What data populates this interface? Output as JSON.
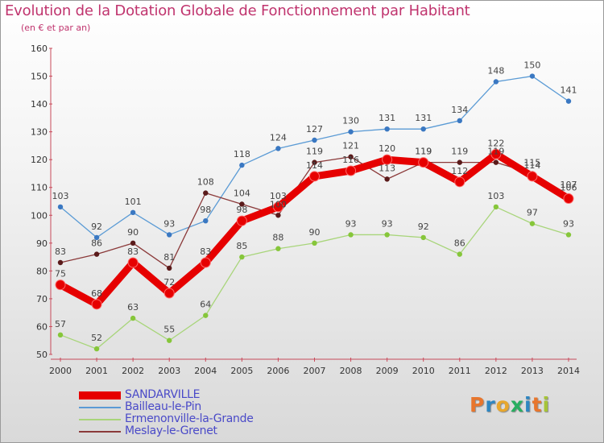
{
  "header": {
    "title": "Evolution de la Dotation Globale de Fonctionnement par Habitant",
    "subtitle": "(en € et par an)"
  },
  "brand": {
    "letters": [
      "P",
      "r",
      "o",
      "x",
      "i",
      "t",
      "i"
    ],
    "colors": [
      "#e8762d",
      "#2e86c1",
      "#e8a72d",
      "#27ae60",
      "#2e86c1",
      "#e8762d",
      "#a6c437"
    ]
  },
  "chart_data": {
    "type": "line",
    "title": "Evolution de la Dotation Globale de Fonctionnement par Habitant",
    "subtitle": "(en € et par an)",
    "xlabel": "",
    "ylabel": "",
    "ylim": [
      50,
      160
    ],
    "yticks": [
      50,
      60,
      70,
      80,
      90,
      100,
      110,
      120,
      130,
      140,
      150,
      160
    ],
    "grid": false,
    "legend_position": "bottom-left",
    "categories": [
      "2000",
      "2001",
      "2002",
      "2003",
      "2004",
      "2005",
      "2006",
      "2007",
      "2008",
      "2009",
      "2010",
      "2011",
      "2012",
      "2013",
      "2014"
    ],
    "series": [
      {
        "name": "Bailleau-le-Pin",
        "color": "#5b9bd5",
        "marker": "#3a78c2",
        "values": [
          103,
          92,
          101,
          93,
          98,
          118,
          124,
          127,
          130,
          131,
          131,
          134,
          148,
          150,
          141
        ]
      },
      {
        "name": "Ermenonville-la-Grande",
        "color": "#a8d57a",
        "marker": "#86c63a",
        "values": [
          57,
          52,
          63,
          55,
          64,
          85,
          88,
          90,
          93,
          93,
          92,
          86,
          103,
          97,
          93
        ]
      },
      {
        "name": "Meslay-le-Grenet",
        "color": "#8b3a3a",
        "marker": "#5a1a1a",
        "values": [
          83,
          86,
          90,
          81,
          108,
          104,
          100,
          119,
          121,
          113,
          119,
          119,
          119,
          115,
          107
        ]
      },
      {
        "name": "SANDARVILLE",
        "color": "#e60000",
        "marker": "#e60000",
        "values": [
          75,
          68,
          83,
          72,
          83,
          98,
          103,
          114,
          116,
          120,
          119,
          112,
          122,
          114,
          106
        ]
      }
    ],
    "data_labels": {
      "Bailleau-le-Pin": [
        "103",
        "92",
        "101",
        "93",
        "98",
        "118",
        "124",
        "127",
        "130",
        "131",
        "131",
        "134",
        "148",
        "150",
        "141"
      ],
      "Ermenonville-la-Grande": [
        "57",
        "52",
        "63",
        "55",
        "64",
        "85",
        "88",
        "90",
        "93",
        "93",
        "92",
        "86",
        "103",
        "97",
        "93"
      ],
      "Meslay-le-Grenet": [
        "83",
        "86",
        "90",
        "81",
        "108",
        "104",
        "100",
        "119",
        "121",
        "113",
        "119",
        "119",
        "119",
        "115",
        "107"
      ],
      "SANDARVILLE": [
        "75",
        "68",
        "83",
        "72",
        "83",
        "98",
        "103",
        "114",
        "116",
        "120",
        "119",
        "112",
        "122",
        "114",
        "106"
      ]
    },
    "legend": [
      {
        "name": "SANDARVILLE",
        "color": "#e60000"
      },
      {
        "name": "Bailleau-le-Pin",
        "color": "#5b9bd5"
      },
      {
        "name": "Ermenonville-la-Grande",
        "color": "#a8d57a"
      },
      {
        "name": "Meslay-le-Grenet",
        "color": "#8b3a3a"
      }
    ]
  }
}
